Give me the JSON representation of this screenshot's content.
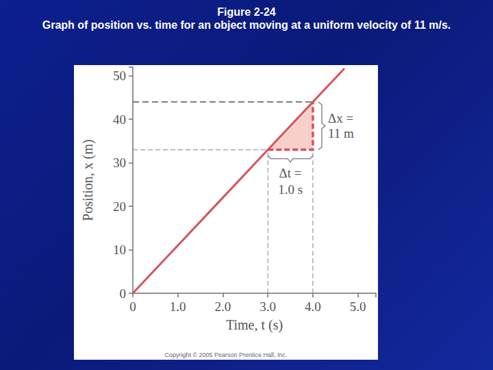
{
  "chart_data": {
    "type": "line",
    "title": "Figure 2-24",
    "subtitle": "Graph of position vs. time for an object moving at a uniform velocity of 11 m/s.",
    "copyright": "Copyright © 2005 Pearson Prentice Hall, Inc.",
    "x_label": "Time, t (s)",
    "y_label": "Position, x (m)",
    "x": [
      0,
      1,
      2,
      3,
      4,
      4.7
    ],
    "values": [
      0,
      11,
      22,
      33,
      44,
      51.7
    ],
    "color": "#d6525c",
    "xlim": [
      0,
      5.4
    ],
    "ylim": [
      0,
      52
    ],
    "xticks": [
      0,
      {
        "value": 1,
        "label": "1.0"
      },
      {
        "value": 2,
        "label": "2.0"
      },
      {
        "value": 3,
        "label": "3.0"
      },
      {
        "value": 4,
        "label": "4.0"
      },
      {
        "value": 5,
        "label": "5.0"
      }
    ],
    "yticks": [
      0,
      10,
      20,
      30,
      40,
      50
    ],
    "grid": false,
    "highlight": {
      "t": [
        3,
        4
      ],
      "x": [
        33,
        44
      ],
      "dt_label": [
        "Δt =",
        "1.0 s"
      ],
      "dx_label": [
        "Δx =",
        "11 m"
      ]
    }
  }
}
